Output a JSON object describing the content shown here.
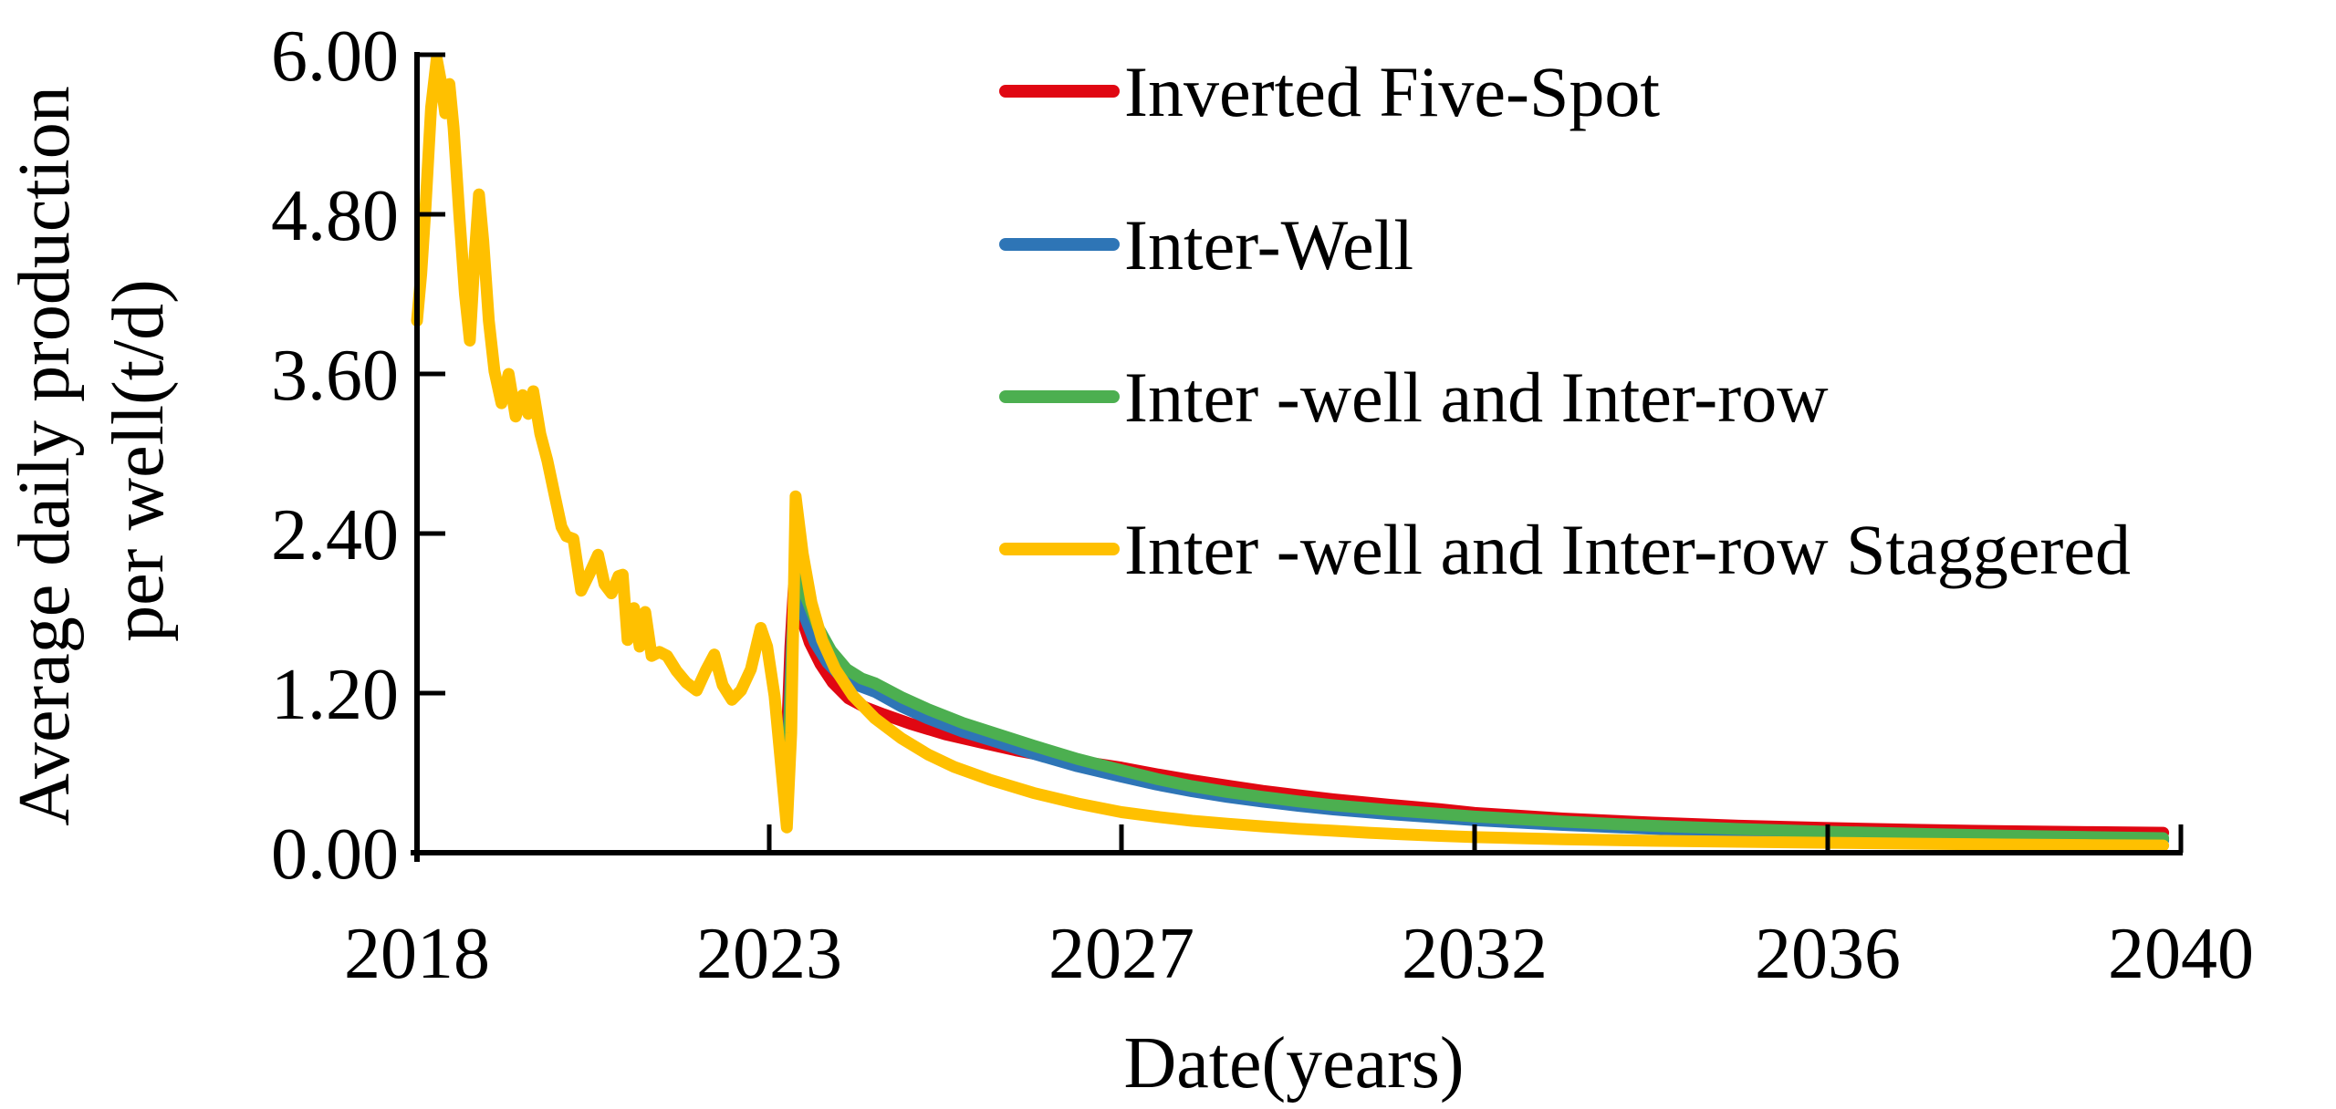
{
  "figure": {
    "background": "#ffffff",
    "axis_color": "#000000"
  },
  "y_axis": {
    "tick_labels": [
      "6.00",
      "4.80",
      "3.60",
      "2.40",
      "1.20",
      "0.00"
    ],
    "tick_values": [
      6.0,
      4.8,
      3.6,
      2.4,
      1.2,
      0.0
    ],
    "title_line1": "Average daily production",
    "title_line2": "per well(t/d)"
  },
  "x_axis": {
    "tick_labels": [
      "2018",
      "2023",
      "2027",
      "2032",
      "2036",
      "2040"
    ],
    "tick_values": [
      2018,
      2023,
      2027,
      2032,
      2036,
      2040
    ],
    "title": "Date(years)"
  },
  "chart_data": {
    "type": "line",
    "title": "",
    "xlabel": "Date(years)",
    "ylabel": "Average daily production per well(t/d)",
    "ylabel_line1": "Average daily production",
    "ylabel_line2": "per well(t/d)",
    "ylim": [
      0,
      6
    ],
    "y_ticks": [
      0.0,
      1.2,
      2.4,
      3.6,
      4.8,
      6.0
    ],
    "x_ticks": [
      2018,
      2023,
      2027,
      2032,
      2036,
      2040
    ],
    "x_tick_spacing": "uniform-pixel despite unequal year gaps",
    "grid": false,
    "legend_position": "inside-top-right",
    "series": [
      {
        "name": "Inverted Five-Spot",
        "color": "#e00712",
        "points": [
          [
            2023.2,
            0.85
          ],
          [
            2023.24,
            1.55
          ],
          [
            2023.28,
            2.0
          ],
          [
            2023.36,
            1.78
          ],
          [
            2023.46,
            1.58
          ],
          [
            2023.58,
            1.42
          ],
          [
            2023.72,
            1.28
          ],
          [
            2023.9,
            1.16
          ],
          [
            2024.1,
            1.09
          ],
          [
            2024.3,
            1.04
          ],
          [
            2024.6,
            0.97
          ],
          [
            2025.0,
            0.89
          ],
          [
            2025.4,
            0.83
          ],
          [
            2025.8,
            0.77
          ],
          [
            2026.2,
            0.72
          ],
          [
            2026.6,
            0.68
          ],
          [
            2027.0,
            0.64
          ],
          [
            2027.5,
            0.59
          ],
          [
            2028.0,
            0.545
          ],
          [
            2028.5,
            0.505
          ],
          [
            2029.0,
            0.465
          ],
          [
            2029.5,
            0.432
          ],
          [
            2030.0,
            0.402
          ],
          [
            2030.8,
            0.36
          ],
          [
            2031.5,
            0.328
          ],
          [
            2032.0,
            0.3
          ],
          [
            2033.0,
            0.257
          ],
          [
            2034.0,
            0.227
          ],
          [
            2035.0,
            0.203
          ],
          [
            2036.0,
            0.186
          ],
          [
            2037.0,
            0.172
          ],
          [
            2038.0,
            0.162
          ],
          [
            2039.0,
            0.155
          ],
          [
            2039.8,
            0.15
          ]
        ]
      },
      {
        "name": "Inter-Well",
        "color": "#2e75b6",
        "points": [
          [
            2023.21,
            0.7
          ],
          [
            2023.26,
            1.6
          ],
          [
            2023.3,
            2.05
          ],
          [
            2023.4,
            1.78
          ],
          [
            2023.52,
            1.58
          ],
          [
            2023.66,
            1.43
          ],
          [
            2023.82,
            1.32
          ],
          [
            2024.0,
            1.26
          ],
          [
            2024.2,
            1.21
          ],
          [
            2024.5,
            1.1
          ],
          [
            2024.8,
            1.01
          ],
          [
            2025.2,
            0.91
          ],
          [
            2025.6,
            0.83
          ],
          [
            2026.0,
            0.745
          ],
          [
            2026.5,
            0.65
          ],
          [
            2027.0,
            0.572
          ],
          [
            2027.5,
            0.512
          ],
          [
            2028.0,
            0.462
          ],
          [
            2028.5,
            0.42
          ],
          [
            2029.0,
            0.385
          ],
          [
            2029.5,
            0.353
          ],
          [
            2030.0,
            0.326
          ],
          [
            2030.8,
            0.29
          ],
          [
            2031.5,
            0.264
          ],
          [
            2032.0,
            0.245
          ],
          [
            2033.0,
            0.209
          ],
          [
            2034.0,
            0.181
          ],
          [
            2035.0,
            0.158
          ],
          [
            2036.0,
            0.139
          ],
          [
            2037.0,
            0.124
          ],
          [
            2038.0,
            0.111
          ],
          [
            2039.0,
            0.1
          ],
          [
            2039.8,
            0.093
          ]
        ]
      },
      {
        "name": "Inter -well and Inter-row",
        "color": "#4caf50",
        "points": [
          [
            2023.22,
            0.75
          ],
          [
            2023.27,
            1.7
          ],
          [
            2023.31,
            2.25
          ],
          [
            2023.42,
            1.92
          ],
          [
            2023.55,
            1.7
          ],
          [
            2023.7,
            1.52
          ],
          [
            2023.88,
            1.38
          ],
          [
            2024.05,
            1.31
          ],
          [
            2024.2,
            1.275
          ],
          [
            2024.5,
            1.17
          ],
          [
            2024.8,
            1.08
          ],
          [
            2025.2,
            0.975
          ],
          [
            2025.6,
            0.89
          ],
          [
            2026.0,
            0.805
          ],
          [
            2026.5,
            0.705
          ],
          [
            2027.0,
            0.62
          ],
          [
            2027.5,
            0.555
          ],
          [
            2028.0,
            0.5
          ],
          [
            2028.5,
            0.457
          ],
          [
            2029.0,
            0.42
          ],
          [
            2029.5,
            0.386
          ],
          [
            2030.0,
            0.357
          ],
          [
            2030.8,
            0.32
          ],
          [
            2031.5,
            0.293
          ],
          [
            2032.0,
            0.272
          ],
          [
            2033.0,
            0.234
          ],
          [
            2034.0,
            0.203
          ],
          [
            2035.0,
            0.178
          ],
          [
            2036.0,
            0.158
          ],
          [
            2037.0,
            0.142
          ],
          [
            2038.0,
            0.128
          ],
          [
            2039.0,
            0.117
          ],
          [
            2039.8,
            0.11
          ]
        ]
      },
      {
        "name": "Inter -well and Inter-row Staggered",
        "color": "#ffc000",
        "points": [
          [
            2018.0,
            4.0
          ],
          [
            2018.06,
            4.35
          ],
          [
            2018.12,
            4.85
          ],
          [
            2018.2,
            5.6
          ],
          [
            2018.28,
            5.97
          ],
          [
            2018.34,
            5.8
          ],
          [
            2018.4,
            5.56
          ],
          [
            2018.46,
            5.78
          ],
          [
            2018.52,
            5.45
          ],
          [
            2018.6,
            4.8
          ],
          [
            2018.68,
            4.2
          ],
          [
            2018.75,
            3.85
          ],
          [
            2018.82,
            4.5
          ],
          [
            2018.88,
            4.95
          ],
          [
            2018.94,
            4.6
          ],
          [
            2019.02,
            4.0
          ],
          [
            2019.1,
            3.62
          ],
          [
            2019.2,
            3.38
          ],
          [
            2019.3,
            3.6
          ],
          [
            2019.4,
            3.28
          ],
          [
            2019.5,
            3.44
          ],
          [
            2019.58,
            3.3
          ],
          [
            2019.65,
            3.47
          ],
          [
            2019.75,
            3.15
          ],
          [
            2019.85,
            2.95
          ],
          [
            2019.95,
            2.7
          ],
          [
            2020.05,
            2.45
          ],
          [
            2020.12,
            2.38
          ],
          [
            2020.22,
            2.36
          ],
          [
            2020.33,
            1.97
          ],
          [
            2020.45,
            2.1
          ],
          [
            2020.57,
            2.24
          ],
          [
            2020.66,
            2.02
          ],
          [
            2020.76,
            1.95
          ],
          [
            2020.86,
            2.08
          ],
          [
            2020.92,
            2.09
          ],
          [
            2020.99,
            1.6
          ],
          [
            2021.08,
            1.84
          ],
          [
            2021.16,
            1.55
          ],
          [
            2021.24,
            1.81
          ],
          [
            2021.33,
            1.48
          ],
          [
            2021.44,
            1.51
          ],
          [
            2021.55,
            1.48
          ],
          [
            2021.68,
            1.37
          ],
          [
            2021.82,
            1.28
          ],
          [
            2021.97,
            1.22
          ],
          [
            2022.1,
            1.37
          ],
          [
            2022.22,
            1.49
          ],
          [
            2022.34,
            1.26
          ],
          [
            2022.47,
            1.15
          ],
          [
            2022.6,
            1.22
          ],
          [
            2022.74,
            1.38
          ],
          [
            2022.88,
            1.69
          ],
          [
            2022.97,
            1.55
          ],
          [
            2023.06,
            1.18
          ],
          [
            2023.14,
            0.62
          ],
          [
            2023.2,
            0.19
          ],
          [
            2023.25,
            0.9
          ],
          [
            2023.3,
            2.68
          ],
          [
            2023.38,
            2.25
          ],
          [
            2023.48,
            1.88
          ],
          [
            2023.6,
            1.6
          ],
          [
            2023.75,
            1.38
          ],
          [
            2023.95,
            1.18
          ],
          [
            2024.2,
            1.01
          ],
          [
            2024.5,
            0.86
          ],
          [
            2024.8,
            0.74
          ],
          [
            2025.1,
            0.645
          ],
          [
            2025.5,
            0.55
          ],
          [
            2026.0,
            0.45
          ],
          [
            2026.5,
            0.37
          ],
          [
            2027.0,
            0.305
          ],
          [
            2027.5,
            0.27
          ],
          [
            2028.0,
            0.24
          ],
          [
            2028.5,
            0.218
          ],
          [
            2029.0,
            0.198
          ],
          [
            2029.5,
            0.18
          ],
          [
            2030.0,
            0.165
          ],
          [
            2030.5,
            0.15
          ],
          [
            2031.0,
            0.138
          ],
          [
            2031.5,
            0.127
          ],
          [
            2032.0,
            0.117
          ],
          [
            2033.0,
            0.101
          ],
          [
            2034.0,
            0.09
          ],
          [
            2035.0,
            0.082
          ],
          [
            2036.0,
            0.075
          ],
          [
            2037.0,
            0.068
          ],
          [
            2038.0,
            0.062
          ],
          [
            2039.0,
            0.057
          ],
          [
            2039.8,
            0.054
          ]
        ]
      }
    ]
  }
}
